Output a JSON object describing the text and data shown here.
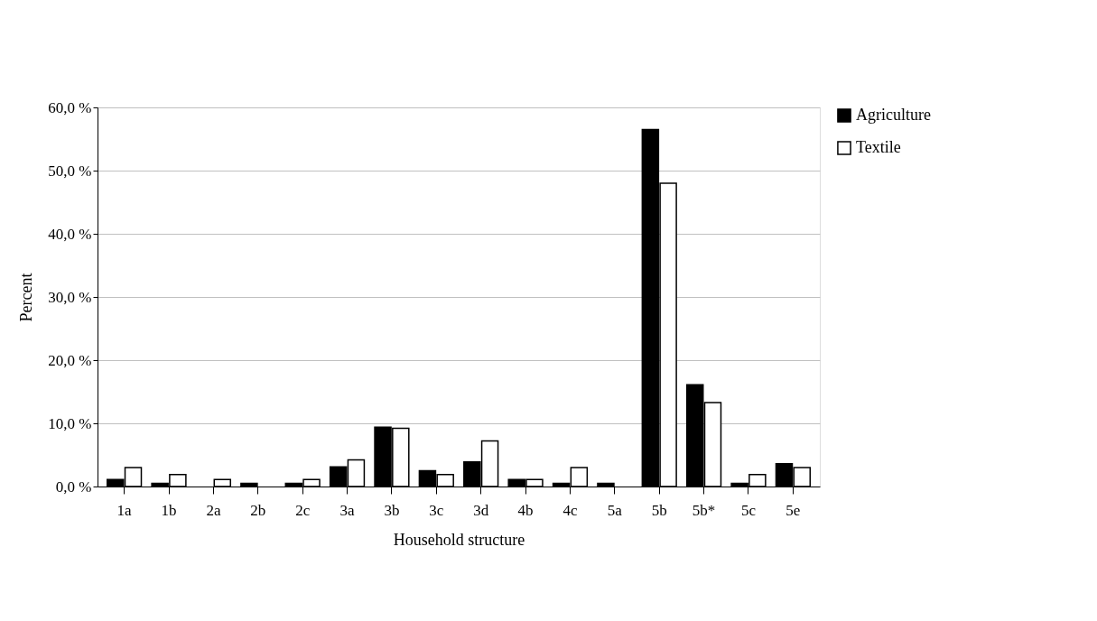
{
  "chart_data": {
    "type": "bar",
    "xlabel": "Household structure",
    "ylabel": "Percent",
    "categories": [
      "1a",
      "1b",
      "2a",
      "2b",
      "2c",
      "3a",
      "3b",
      "3c",
      "3d",
      "4b",
      "4c",
      "5a",
      "5b",
      "5b*",
      "5c",
      "5e"
    ],
    "series": [
      {
        "name": "Agriculture",
        "color": "#000000",
        "values": [
          1.1,
          0.5,
          0,
          0.5,
          0.5,
          3.1,
          9.4,
          2.5,
          3.9,
          1.1,
          0.5,
          0.5,
          56.5,
          16.1,
          0.5,
          3.6
        ]
      },
      {
        "name": "Textile",
        "color": "#ffffff",
        "values": [
          3.0,
          1.9,
          1.1,
          0,
          1.1,
          4.2,
          9.2,
          1.9,
          7.2,
          1.1,
          3.0,
          0,
          48.0,
          13.3,
          1.9,
          3.0
        ]
      }
    ],
    "ylim": [
      0,
      60
    ],
    "yticks": [
      {
        "value": 0,
        "label": "0,0 %"
      },
      {
        "value": 10,
        "label": "10,0 %"
      },
      {
        "value": 20,
        "label": "20,0 %"
      },
      {
        "value": 30,
        "label": "30,0 %"
      },
      {
        "value": 40,
        "label": "40,0 %"
      },
      {
        "value": 50,
        "label": "50,0 %"
      },
      {
        "value": 60,
        "label": "60,0 %"
      }
    ],
    "grid": "y",
    "legend": "right"
  }
}
